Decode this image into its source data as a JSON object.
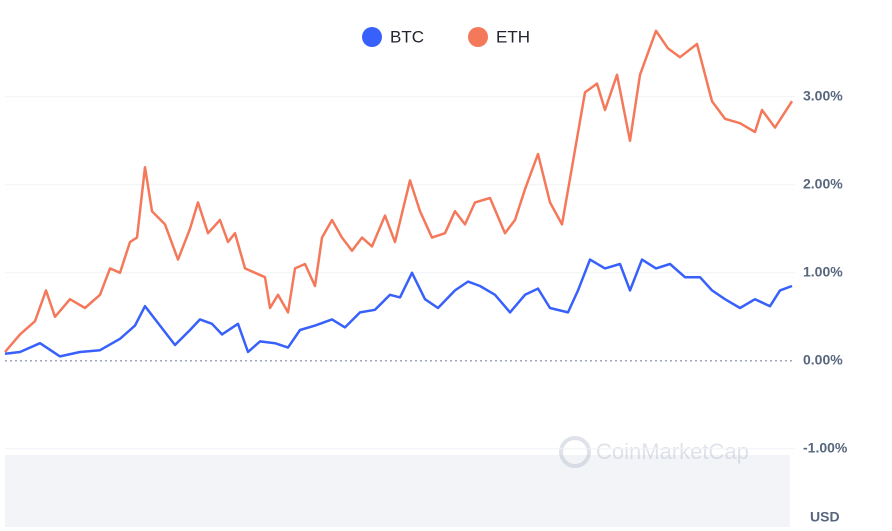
{
  "chart_data": {
    "type": "line",
    "series": [
      {
        "name": "BTC",
        "color": "#3861fb",
        "x": [
          0,
          15,
          35,
          55,
          75,
          95,
          115,
          130,
          140,
          155,
          170,
          185,
          195,
          207,
          217,
          233,
          243,
          255,
          270,
          283,
          295,
          310,
          327,
          340,
          355,
          370,
          385,
          395,
          407,
          420,
          433,
          450,
          463,
          475,
          490,
          505,
          520,
          533,
          545,
          563,
          573,
          585,
          600,
          615,
          625,
          637,
          651,
          665,
          680,
          695,
          707,
          720,
          735,
          750,
          765,
          775,
          787
        ],
        "values": [
          0.08,
          0.1,
          0.2,
          0.05,
          0.1,
          0.12,
          0.25,
          0.4,
          0.62,
          0.4,
          0.18,
          0.35,
          0.47,
          0.42,
          0.3,
          0.42,
          0.1,
          0.22,
          0.2,
          0.15,
          0.35,
          0.4,
          0.47,
          0.38,
          0.55,
          0.58,
          0.75,
          0.72,
          1.0,
          0.7,
          0.6,
          0.8,
          0.9,
          0.85,
          0.75,
          0.55,
          0.75,
          0.82,
          0.6,
          0.55,
          0.8,
          1.15,
          1.05,
          1.1,
          0.8,
          1.15,
          1.05,
          1.1,
          0.95,
          0.95,
          0.8,
          0.7,
          0.6,
          0.7,
          0.62,
          0.8,
          0.85
        ]
      },
      {
        "name": "ETH",
        "color": "#f4795b",
        "x": [
          0,
          15,
          30,
          41,
          50,
          65,
          80,
          95,
          105,
          115,
          125,
          132,
          140,
          147,
          160,
          173,
          185,
          193,
          203,
          215,
          223,
          230,
          240,
          250,
          260,
          265,
          273,
          283,
          290,
          300,
          310,
          317,
          327,
          337,
          347,
          357,
          367,
          380,
          390,
          405,
          415,
          427,
          440,
          450,
          460,
          470,
          485,
          500,
          510,
          520,
          533,
          545,
          557,
          567,
          580,
          592,
          600,
          612,
          625,
          635,
          651,
          663,
          675,
          692,
          707,
          720,
          735,
          750,
          757,
          770,
          787
        ],
        "values": [
          0.1,
          0.3,
          0.45,
          0.8,
          0.5,
          0.7,
          0.6,
          0.75,
          1.05,
          1.0,
          1.35,
          1.4,
          2.2,
          1.7,
          1.55,
          1.15,
          1.5,
          1.8,
          1.45,
          1.6,
          1.35,
          1.45,
          1.05,
          1.0,
          0.95,
          0.6,
          0.75,
          0.55,
          1.05,
          1.1,
          0.85,
          1.4,
          1.6,
          1.4,
          1.25,
          1.4,
          1.3,
          1.65,
          1.35,
          2.05,
          1.7,
          1.4,
          1.45,
          1.7,
          1.55,
          1.8,
          1.85,
          1.45,
          1.6,
          1.95,
          2.35,
          1.8,
          1.55,
          2.2,
          3.05,
          3.15,
          2.85,
          3.25,
          2.5,
          3.25,
          3.75,
          3.55,
          3.45,
          3.6,
          2.95,
          2.75,
          2.7,
          2.6,
          2.85,
          2.65,
          2.95
        ]
      }
    ],
    "xlim": [
      0,
      787
    ],
    "ylim": [
      -1.9,
      4.1
    ],
    "yticks": [
      {
        "value": 3,
        "label": "3.00%"
      },
      {
        "value": 2,
        "label": "2.00%"
      },
      {
        "value": 1,
        "label": "1.00%"
      },
      {
        "value": 0,
        "label": "0.00%"
      },
      {
        "value": -1,
        "label": "-1.00%"
      }
    ],
    "grid": true,
    "currency_label": "USD",
    "watermark": "CoinMarketCap"
  }
}
